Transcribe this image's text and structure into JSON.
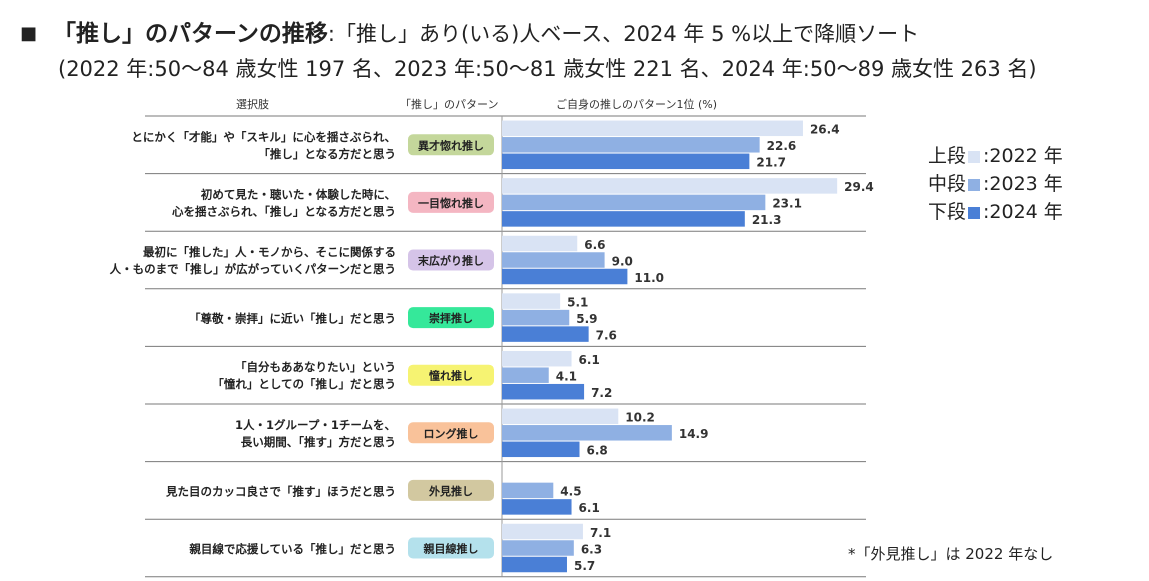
{
  "title": {
    "bullet": "■",
    "main": "「推し」のパターンの推移",
    "subtitle": ":「推し」あり(いる)人ベース、2024 年 5 %以上で降順ソート",
    "line2": "(2022 年:50～84 歳女性 197 名、2023 年:50～81 歳女性 221 名、2024 年:50～89 歳女性 263 名)"
  },
  "column_headers": {
    "choice": "選択肢",
    "pattern": "「推し」のパターン",
    "chart": "ご自身の推しのパターン1位 (%)"
  },
  "legend": [
    {
      "label": "上段",
      "year": ":2022 年",
      "color": "#d9e3f4"
    },
    {
      "label": "中段",
      "year": ":2023 年",
      "color": "#8fb0e3"
    },
    {
      "label": "下段",
      "year": ":2024 年",
      "color": "#4a7fd6"
    }
  ],
  "footnote": "*「外見推し」は 2022 年なし",
  "chart_data": {
    "type": "bar",
    "orientation": "horizontal",
    "ylabel": "ご自身の推しのパターン1位 (%)",
    "xlim": [
      0,
      30
    ],
    "categories": [
      {
        "line1": "とにかく「才能」や「スキル」に心を揺さぶられ、",
        "line2": "「推し」となる方だと思う",
        "pattern": "異才惚れ推し",
        "color": "#c4d79b"
      },
      {
        "line1": "初めて見た・聴いた・体験した時に、",
        "line2": "心を揺さぶられ、「推し」となる方だと思う",
        "pattern": "一目惚れ推し",
        "color": "#f4b6c2"
      },
      {
        "line1": "最初に「推した」人・モノから、そこに関係する",
        "line2": "人・ものまで「推し」が広がっていくパターンだと思う",
        "pattern": "末広がり推し",
        "color": "#d5c4e8"
      },
      {
        "line1": "「尊敬・崇拝」に近い「推し」だと思う",
        "line2": "",
        "pattern": "崇拝推し",
        "color": "#35e89a"
      },
      {
        "line1": "「自分もああなりたい」という",
        "line2": "「憧れ」としての「推し」だと思う",
        "pattern": "憧れ推し",
        "color": "#f6f372"
      },
      {
        "line1": "1人・1グループ・1チームを、",
        "line2": "長い期間、「推す」方だと思う",
        "pattern": "ロング推し",
        "color": "#f9c29a"
      },
      {
        "line1": "見た目のカッコ良さで「推す」ほうだと思う",
        "line2": "",
        "pattern": "外見推し",
        "color": "#d2c8a0"
      },
      {
        "line1": "親目線で応援している「推し」だと思う",
        "line2": "",
        "pattern": "親目線推し",
        "color": "#b4e1ec"
      }
    ],
    "series": [
      {
        "name": "2022",
        "color": "#d9e3f4",
        "values": [
          26.4,
          29.4,
          6.6,
          5.1,
          6.1,
          10.2,
          null,
          7.1
        ]
      },
      {
        "name": "2023",
        "color": "#8fb0e3",
        "values": [
          22.6,
          23.1,
          9.0,
          5.9,
          4.1,
          14.9,
          4.5,
          6.3
        ]
      },
      {
        "name": "2024",
        "color": "#4a7fd6",
        "values": [
          21.7,
          21.3,
          11.0,
          7.6,
          7.2,
          6.8,
          6.1,
          5.7
        ]
      }
    ]
  }
}
